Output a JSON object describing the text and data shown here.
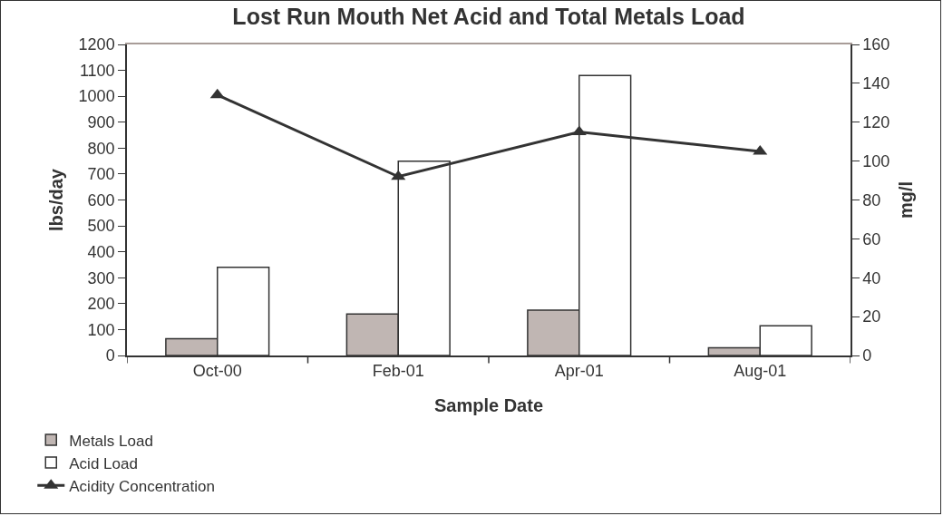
{
  "chart_data": {
    "type": "bar",
    "title": "Lost Run Mouth Net Acid and Total Metals Load",
    "xlabel": "Sample Date",
    "ylabel": "lbs/day",
    "y2label": "mg/l",
    "categories": [
      "Oct-00",
      "Feb-01",
      "Apr-01",
      "Aug-01"
    ],
    "series": [
      {
        "name": "Metals Load",
        "color": "#c0b6b3",
        "values": [
          65,
          160,
          175,
          30
        ]
      },
      {
        "name": "Acid Load",
        "color": "#ffffff",
        "values": [
          340,
          750,
          1080,
          115
        ]
      },
      {
        "name": "Acidity Concentration",
        "type": "line",
        "axis": "y2",
        "color": "#333333",
        "marker": "triangle",
        "values": [
          134,
          92,
          115,
          105
        ]
      }
    ],
    "ylim": [
      0,
      1200
    ],
    "yticks": [
      0,
      100,
      200,
      300,
      400,
      500,
      600,
      700,
      800,
      900,
      1000,
      1100,
      1200
    ],
    "y2lim": [
      0,
      160
    ],
    "y2ticks": [
      0,
      20,
      40,
      60,
      80,
      100,
      120,
      140,
      160
    ],
    "grid": false,
    "legend": "bottom left"
  }
}
